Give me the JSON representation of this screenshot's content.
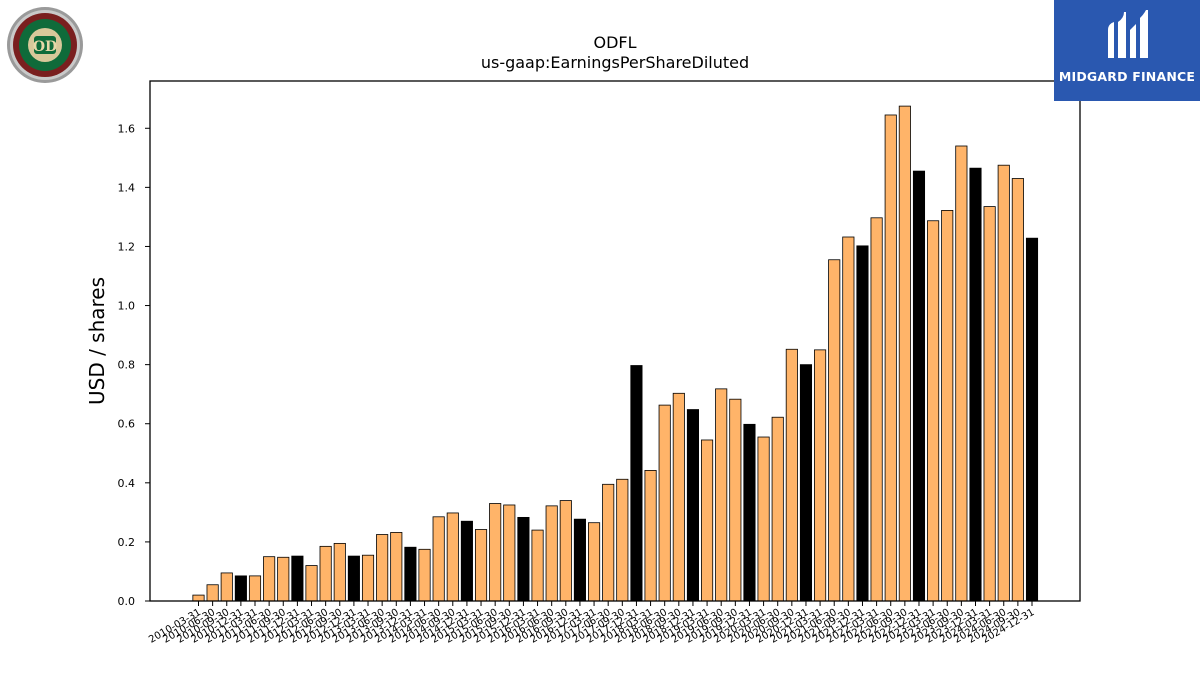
{
  "colors": {
    "bar_default": "#ffb469",
    "bar_highlight": "#000000",
    "bar_edge": "#000000",
    "logo_right_bg": "#2a58b0"
  },
  "logos": {
    "left": {
      "name": "Old Dominion Freight Line",
      "icon": "odfl-round-emblem"
    },
    "right": {
      "text": "MIDGARD FINANCE",
      "icon": "midgard-monogram"
    }
  },
  "chart_data": {
    "type": "bar",
    "title": "ODFL",
    "subtitle": "us-gaap:EarningsPerShareDiluted",
    "xlabel": "",
    "ylabel": "USD / shares",
    "ylim": [
      0,
      1.76
    ],
    "yticks": [
      0.0,
      0.2,
      0.4,
      0.6,
      0.8,
      1.0,
      1.2,
      1.4,
      1.6
    ],
    "ytick_labels": [
      "0.0",
      "0.2",
      "0.4",
      "0.6",
      "0.8",
      "1.0",
      "1.2",
      "1.4",
      "1.6"
    ],
    "grid": false,
    "legend": "none",
    "categories": [
      "2010-03-31",
      "2010-06-30",
      "2010-09-30",
      "2010-12-31",
      "2011-03-31",
      "2011-06-30",
      "2011-09-30",
      "2011-12-31",
      "2012-03-31",
      "2012-06-30",
      "2012-09-30",
      "2012-12-31",
      "2013-03-31",
      "2013-06-30",
      "2013-09-30",
      "2013-12-31",
      "2014-03-31",
      "2014-06-30",
      "2014-09-30",
      "2014-12-31",
      "2015-03-31",
      "2015-06-30",
      "2015-09-30",
      "2015-12-31",
      "2016-03-31",
      "2016-06-30",
      "2016-09-30",
      "2016-12-31",
      "2017-03-31",
      "2017-06-30",
      "2017-09-30",
      "2017-12-31",
      "2018-03-31",
      "2018-06-30",
      "2018-09-30",
      "2018-12-31",
      "2019-03-31",
      "2019-06-30",
      "2019-09-30",
      "2019-12-31",
      "2020-03-31",
      "2020-06-30",
      "2020-09-30",
      "2020-12-31",
      "2021-03-31",
      "2021-06-30",
      "2021-09-30",
      "2021-12-31",
      "2022-03-31",
      "2022-06-30",
      "2022-09-30",
      "2022-12-31",
      "2023-03-31",
      "2023-06-30",
      "2023-09-30",
      "2023-12-31",
      "2024-03-31",
      "2024-06-30",
      "2024-09-30",
      "2024-12-31"
    ],
    "values": [
      0.02,
      0.055,
      0.095,
      0.085,
      0.085,
      0.15,
      0.148,
      0.152,
      0.12,
      0.185,
      0.195,
      0.152,
      0.155,
      0.225,
      0.232,
      0.182,
      0.175,
      0.285,
      0.298,
      0.27,
      0.242,
      0.33,
      0.325,
      0.283,
      0.24,
      0.322,
      0.34,
      0.277,
      0.265,
      0.395,
      0.412,
      0.797,
      0.442,
      0.663,
      0.703,
      0.648,
      0.545,
      0.718,
      0.683,
      0.598,
      0.555,
      0.622,
      0.852,
      0.8,
      0.85,
      1.155,
      1.232,
      1.202,
      1.297,
      1.645,
      1.675,
      1.455,
      1.287,
      1.322,
      1.54,
      1.465,
      1.335,
      1.475,
      1.43,
      1.228
    ],
    "highlight": [
      false,
      false,
      false,
      true,
      false,
      false,
      false,
      true,
      false,
      false,
      false,
      true,
      false,
      false,
      false,
      true,
      false,
      false,
      false,
      true,
      false,
      false,
      false,
      true,
      false,
      false,
      false,
      true,
      false,
      false,
      false,
      true,
      false,
      false,
      false,
      true,
      false,
      false,
      false,
      true,
      false,
      false,
      false,
      true,
      false,
      false,
      false,
      true,
      false,
      false,
      false,
      true,
      false,
      false,
      false,
      true,
      false,
      false,
      false,
      true
    ]
  }
}
